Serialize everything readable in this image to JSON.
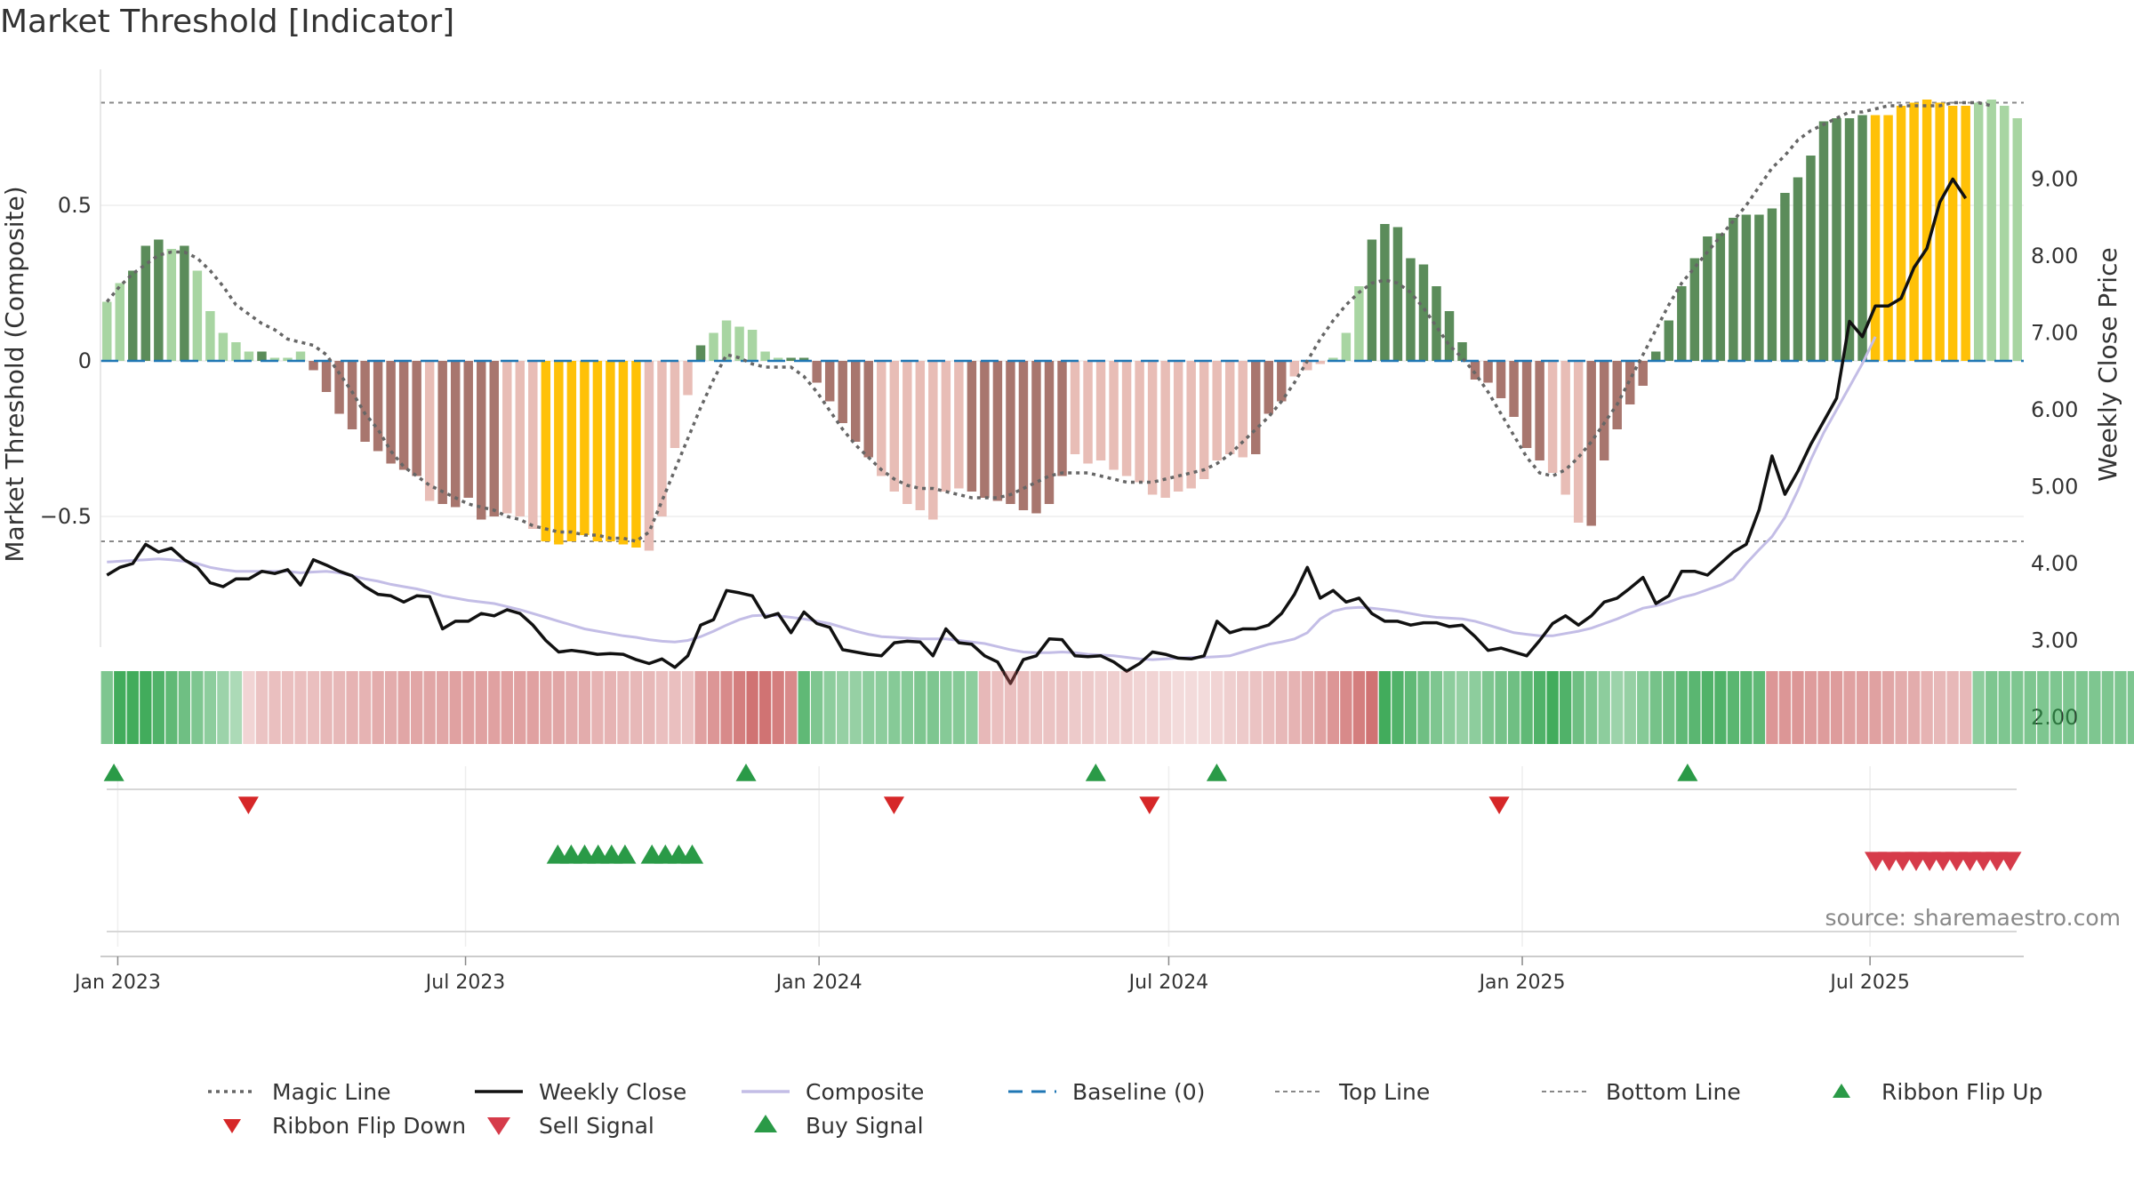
{
  "title": "Market Threshold [Indicator]",
  "source": "source: sharemaestro.com",
  "colors": {
    "dark_green": "#5b8c5a",
    "light_green": "#a8d5a2",
    "dark_red": "#a8766e",
    "light_red": "#e8bdb6",
    "yellow": "#ffc107",
    "black_line": "#111111",
    "composite": "#c3bde6",
    "magic": "#666666",
    "baseline": "#1f77b4",
    "buy": "#2a9a47",
    "sell": "#d63b4a",
    "flip_up": "#2a9a47",
    "flip_down": "#d62728"
  },
  "legend": [
    {
      "key": "magic",
      "label": "Magic Line"
    },
    {
      "key": "close",
      "label": "Weekly Close"
    },
    {
      "key": "composite",
      "label": "Composite"
    },
    {
      "key": "baseline",
      "label": "Baseline (0)"
    },
    {
      "key": "top",
      "label": "Top Line"
    },
    {
      "key": "bottom",
      "label": "Bottom Line"
    },
    {
      "key": "flip_up",
      "label": "Ribbon Flip Up"
    },
    {
      "key": "flip_down",
      "label": "Ribbon Flip Down"
    },
    {
      "key": "sell",
      "label": "Sell Signal"
    },
    {
      "key": "buy",
      "label": "Buy Signal"
    }
  ],
  "chart_data": {
    "type": "bar",
    "title": "Market Threshold [Indicator]",
    "y_left_label": "Market Threshold (Composite)",
    "y_right_label": "Weekly Close Price",
    "y_left_ticks": [
      "0.5",
      "0",
      "−0.5"
    ],
    "y_left_tick_values": [
      0.5,
      0,
      -0.5
    ],
    "y_right_ticks": [
      "9.00",
      "8.00",
      "7.00",
      "6.00",
      "5.00",
      "4.00",
      "3.00",
      "2.00"
    ],
    "y_right_tick_values": [
      9,
      8,
      7,
      6,
      5,
      4,
      3,
      2
    ],
    "y_left_range": [
      -0.92,
      0.92
    ],
    "y_right_range": [
      1.9,
      9.4
    ],
    "x_start": "2022-12-23",
    "x_end": "2025-09-19",
    "x_ticks": [
      {
        "label": "Jan 2023",
        "date": "2023-01-01"
      },
      {
        "label": "Jul 2023",
        "date": "2023-07-01"
      },
      {
        "label": "Jan 2024",
        "date": "2024-01-01"
      },
      {
        "label": "Jul 2024",
        "date": "2024-07-01"
      },
      {
        "label": "Jan 2025",
        "date": "2025-01-01"
      },
      {
        "label": "Jul 2025",
        "date": "2025-07-01"
      }
    ],
    "top_line": 0.83,
    "bottom_line": -0.58,
    "baseline": 0,
    "composite_bars": [
      0.19,
      0.25,
      0.29,
      0.37,
      0.39,
      0.36,
      0.37,
      0.29,
      0.16,
      0.09,
      0.06,
      0.03,
      0.03,
      0.01,
      0.01,
      0.03,
      -0.03,
      -0.1,
      -0.17,
      -0.22,
      -0.26,
      -0.29,
      -0.33,
      -0.35,
      -0.37,
      -0.45,
      -0.46,
      -0.47,
      -0.44,
      -0.51,
      -0.5,
      -0.49,
      -0.5,
      -0.54,
      -0.58,
      -0.59,
      -0.58,
      -0.56,
      -0.58,
      -0.58,
      -0.59,
      -0.6,
      -0.61,
      -0.5,
      -0.28,
      -0.11,
      0.05,
      0.09,
      0.13,
      0.11,
      0.1,
      0.03,
      0.01,
      0.01,
      0.01,
      -0.07,
      -0.13,
      -0.2,
      -0.26,
      -0.31,
      -0.37,
      -0.42,
      -0.46,
      -0.48,
      -0.51,
      -0.42,
      -0.41,
      -0.42,
      -0.44,
      -0.45,
      -0.46,
      -0.48,
      -0.49,
      -0.46,
      -0.37,
      -0.3,
      -0.33,
      -0.32,
      -0.35,
      -0.37,
      -0.39,
      -0.43,
      -0.44,
      -0.42,
      -0.41,
      -0.38,
      -0.32,
      -0.3,
      -0.31,
      -0.3,
      -0.17,
      -0.13,
      -0.05,
      -0.03,
      -0.01,
      0.01,
      0.09,
      0.24,
      0.39,
      0.44,
      0.43,
      0.33,
      0.31,
      0.24,
      0.16,
      0.06,
      -0.06,
      -0.07,
      -0.12,
      -0.18,
      -0.28,
      -0.32,
      -0.36,
      -0.43,
      -0.52,
      -0.53,
      -0.32,
      -0.22,
      -0.14,
      -0.08,
      0.03,
      0.13,
      0.24,
      0.33,
      0.4,
      0.41,
      0.46,
      0.47,
      0.47,
      0.49,
      0.54,
      0.59,
      0.66,
      0.77,
      0.78,
      0.78,
      0.79,
      0.79,
      0.79,
      0.82,
      0.83,
      0.84,
      0.83,
      0.82,
      0.82,
      0.83,
      0.84,
      0.82,
      0.78
    ],
    "bar_colors": "LLDDDLDLLLLLDLLLDDDDDDDDDLDDDDDLLLYYYYYYYYLLLLDLLLLLLDDDDDDDLLLLLLLDDDDDDDDLLLLLLLLLLLLLLDDDLLLLLLDDDDDDDDDDDDDDLLLDDDDDDDDDDDDDDDDDDDDDDYYYYYYYYL",
    "magic_line": [
      0.19,
      0.24,
      0.28,
      0.31,
      0.34,
      0.35,
      0.35,
      0.33,
      0.29,
      0.24,
      0.18,
      0.15,
      0.12,
      0.1,
      0.07,
      0.06,
      0.05,
      0.02,
      -0.04,
      -0.1,
      -0.17,
      -0.22,
      -0.29,
      -0.34,
      -0.37,
      -0.4,
      -0.42,
      -0.44,
      -0.46,
      -0.47,
      -0.48,
      -0.5,
      -0.51,
      -0.53,
      -0.54,
      -0.55,
      -0.55,
      -0.56,
      -0.56,
      -0.57,
      -0.57,
      -0.58,
      -0.55,
      -0.45,
      -0.35,
      -0.25,
      -0.15,
      -0.06,
      0.02,
      0.01,
      -0.01,
      -0.02,
      -0.02,
      -0.02,
      -0.05,
      -0.1,
      -0.16,
      -0.22,
      -0.27,
      -0.31,
      -0.35,
      -0.38,
      -0.4,
      -0.41,
      -0.41,
      -0.42,
      -0.43,
      -0.44,
      -0.44,
      -0.44,
      -0.43,
      -0.41,
      -0.39,
      -0.37,
      -0.36,
      -0.36,
      -0.36,
      -0.37,
      -0.38,
      -0.39,
      -0.39,
      -0.39,
      -0.38,
      -0.37,
      -0.36,
      -0.35,
      -0.33,
      -0.3,
      -0.26,
      -0.22,
      -0.18,
      -0.13,
      -0.07,
      0,
      0.07,
      0.13,
      0.18,
      0.22,
      0.25,
      0.26,
      0.25,
      0.22,
      0.17,
      0.11,
      0.05,
      0.01,
      -0.04,
      -0.1,
      -0.17,
      -0.24,
      -0.31,
      -0.36,
      -0.37,
      -0.35,
      -0.31,
      -0.26,
      -0.2,
      -0.14,
      -0.06,
      0.02,
      0.1,
      0.18,
      0.25,
      0.3,
      0.35,
      0.4,
      0.45,
      0.5,
      0.56,
      0.62,
      0.66,
      0.71,
      0.74,
      0.76,
      0.78,
      0.8,
      0.8,
      0.81,
      0.82,
      0.82,
      0.82,
      0.82,
      0.82,
      0.83,
      0.83,
      0.83,
      0.82
    ],
    "weekly_close": [
      3.85,
      3.95,
      4.0,
      4.25,
      4.15,
      4.2,
      4.05,
      3.95,
      3.75,
      3.7,
      3.8,
      3.8,
      3.9,
      3.87,
      3.92,
      3.72,
      4.05,
      3.98,
      3.9,
      3.84,
      3.7,
      3.6,
      3.58,
      3.5,
      3.58,
      3.57,
      3.15,
      3.25,
      3.25,
      3.35,
      3.32,
      3.4,
      3.35,
      3.2,
      3.0,
      2.85,
      2.87,
      2.85,
      2.82,
      2.83,
      2.82,
      2.75,
      2.7,
      2.76,
      2.65,
      2.8,
      3.2,
      3.27,
      3.65,
      3.62,
      3.58,
      3.3,
      3.35,
      3.1,
      3.37,
      3.22,
      3.17,
      2.88,
      2.85,
      2.82,
      2.8,
      2.97,
      2.99,
      2.98,
      2.8,
      3.15,
      2.97,
      2.95,
      2.8,
      2.72,
      2.44,
      2.75,
      2.8,
      3.02,
      3.01,
      2.8,
      2.79,
      2.8,
      2.72,
      2.6,
      2.7,
      2.85,
      2.82,
      2.77,
      2.76,
      2.8,
      3.25,
      3.1,
      3.15,
      3.15,
      3.2,
      3.35,
      3.6,
      3.95,
      3.55,
      3.65,
      3.5,
      3.55,
      3.35,
      3.25,
      3.25,
      3.2,
      3.23,
      3.23,
      3.18,
      3.2,
      3.05,
      2.87,
      2.9,
      2.85,
      2.8,
      3.0,
      3.22,
      3.32,
      3.2,
      3.32,
      3.5,
      3.55,
      3.68,
      3.82,
      3.48,
      3.58,
      3.9,
      3.9,
      3.85,
      4.0,
      4.15,
      4.25,
      4.7,
      5.4,
      4.9,
      5.2,
      5.55,
      5.85,
      6.15,
      7.15,
      6.95,
      7.35,
      7.35,
      7.45,
      7.85,
      8.1,
      8.7,
      9.0,
      8.75
    ],
    "composite_line": [
      4.02,
      4.03,
      4.04,
      4.05,
      4.06,
      4.05,
      4.03,
      4.0,
      3.95,
      3.92,
      3.9,
      3.9,
      3.9,
      3.9,
      3.9,
      3.88,
      3.89,
      3.9,
      3.88,
      3.84,
      3.8,
      3.77,
      3.73,
      3.7,
      3.67,
      3.63,
      3.58,
      3.55,
      3.52,
      3.5,
      3.48,
      3.44,
      3.4,
      3.35,
      3.3,
      3.25,
      3.2,
      3.15,
      3.12,
      3.09,
      3.06,
      3.04,
      3.01,
      2.99,
      2.98,
      3.0,
      3.05,
      3.12,
      3.2,
      3.27,
      3.32,
      3.33,
      3.32,
      3.3,
      3.28,
      3.25,
      3.22,
      3.17,
      3.12,
      3.08,
      3.05,
      3.04,
      3.03,
      3.02,
      3.02,
      3.02,
      3.0,
      2.98,
      2.96,
      2.92,
      2.88,
      2.85,
      2.84,
      2.84,
      2.85,
      2.84,
      2.82,
      2.81,
      2.8,
      2.78,
      2.76,
      2.75,
      2.76,
      2.77,
      2.78,
      2.78,
      2.79,
      2.8,
      2.85,
      2.9,
      2.95,
      2.98,
      3.02,
      3.1,
      3.28,
      3.38,
      3.42,
      3.43,
      3.42,
      3.4,
      3.38,
      3.35,
      3.32,
      3.3,
      3.29,
      3.28,
      3.25,
      3.2,
      3.15,
      3.1,
      3.08,
      3.06,
      3.06,
      3.09,
      3.12,
      3.16,
      3.22,
      3.28,
      3.35,
      3.42,
      3.45,
      3.5,
      3.56,
      3.6,
      3.66,
      3.72,
      3.8,
      4.0,
      4.18,
      4.35,
      4.6,
      4.95,
      5.35,
      5.7,
      6.0,
      6.3,
      6.6,
      6.95
    ],
    "ribbon": "GGGGGGGGGGGRRRRRRRRRRRRRRRRRRRRRRRRRRRRRRRRRRRRRRRRRRRGGGGGGGGGGGGGGRRRRRRRRRRRRRRRRRRRRRRRRRRRRRRRGGGGGGGGGGGGGGGGGGGGGGGGGGGGGGRRRRRRRRRRRRRRRRGGGGGGGGGGGGGGGGGGGGGGGGGGGGGGGG",
    "ribbon_intensity": [
      0.5,
      0.9,
      0.9,
      0.9,
      0.8,
      0.7,
      0.6,
      0.5,
      0.4,
      0.3,
      0.2,
      0.15,
      0.3,
      0.35,
      0.35,
      0.35,
      0.35,
      0.4,
      0.4,
      0.45,
      0.45,
      0.5,
      0.5,
      0.55,
      0.55,
      0.55,
      0.55,
      0.6,
      0.6,
      0.6,
      0.6,
      0.6,
      0.6,
      0.6,
      0.55,
      0.55,
      0.5,
      0.5,
      0.45,
      0.45,
      0.4,
      0.4,
      0.4,
      0.35,
      0.35,
      0.3,
      0.6,
      0.7,
      0.8,
      0.9,
      1.0,
      1.0,
      0.9,
      0.8,
      0.7,
      0.5,
      0.4,
      0.35,
      0.35,
      0.4,
      0.4,
      0.45,
      0.45,
      0.5,
      0.5,
      0.45,
      0.45,
      0.4,
      0.4,
      0.35,
      0.35,
      0.35,
      0.3,
      0.3,
      0.3,
      0.25,
      0.25,
      0.2,
      0.2,
      0.2,
      0.15,
      0.15,
      0.15,
      0.1,
      0.1,
      0.1,
      0.15,
      0.2,
      0.25,
      0.3,
      0.35,
      0.4,
      0.45,
      0.5,
      0.6,
      0.7,
      0.8,
      0.9,
      1.0,
      0.9,
      0.8,
      0.7,
      0.6,
      0.5,
      0.4,
      0.35,
      0.4,
      0.5,
      0.55,
      0.6,
      0.7,
      0.8,
      0.9,
      0.8,
      0.6,
      0.5,
      0.4,
      0.3,
      0.35,
      0.45,
      0.55,
      0.6,
      0.7,
      0.75,
      0.8,
      0.8,
      0.75,
      0.75,
      0.7,
      0.7,
      0.7,
      0.7,
      0.65,
      0.65,
      0.65,
      0.6,
      0.6,
      0.6,
      0.55,
      0.5,
      0.5,
      0.45,
      0.4,
      0.4,
      0.4,
      0.4
    ],
    "ribbon_flip_up": [
      "2022-12-30",
      "2023-11-24",
      "2024-05-24",
      "2024-07-26",
      "2025-03-28"
    ],
    "ribbon_flip_down": [
      "2023-03-10",
      "2024-02-09",
      "2024-06-21",
      "2024-12-20"
    ],
    "buy_signals": [
      "2023-08-18",
      "2023-08-25",
      "2023-09-01",
      "2023-09-08",
      "2023-09-15",
      "2023-09-22",
      "2023-10-06",
      "2023-10-13",
      "2023-10-20",
      "2023-10-27"
    ],
    "sell_signals": [
      "2025-07-04",
      "2025-07-11",
      "2025-07-18",
      "2025-07-25",
      "2025-08-01",
      "2025-08-08",
      "2025-08-15",
      "2025-08-22",
      "2025-08-29",
      "2025-09-05",
      "2025-09-12"
    ]
  }
}
